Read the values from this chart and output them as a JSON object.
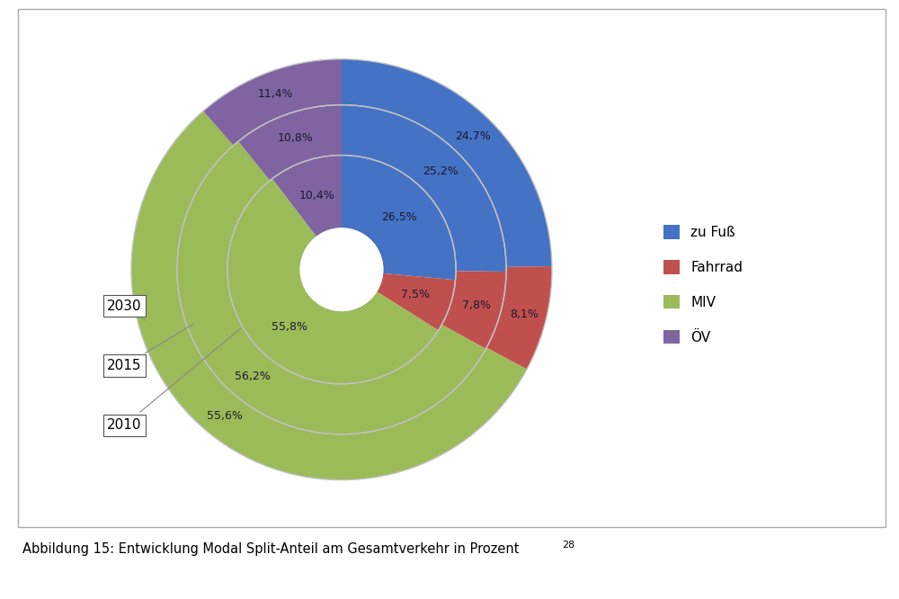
{
  "title": "Abbildung 15: Entwicklung Modal Split-Anteil am Gesamtverkehr in Prozent",
  "title_superscript": "28",
  "years": [
    "2010",
    "2015",
    "2030"
  ],
  "categories": [
    "zu Fuß",
    "Fahrrad",
    "MIV",
    "ÖV"
  ],
  "colors": {
    "zu Fuß": "#4472C4",
    "Fahrrad": "#C0504D",
    "MIV": "#9BBB59",
    "ÖV": "#8064A2"
  },
  "data": {
    "2010": {
      "zu Fuß": 26.5,
      "Fahrrad": 7.5,
      "MIV": 55.8,
      "ÖV": 10.4
    },
    "2015": {
      "zu Fuß": 25.2,
      "Fahrrad": 7.8,
      "MIV": 56.2,
      "ÖV": 10.8
    },
    "2030": {
      "zu Fuß": 24.7,
      "Fahrrad": 8.1,
      "MIV": 55.6,
      "ÖV": 11.4
    }
  },
  "ring_radii": {
    "2010": [
      0.18,
      0.5
    ],
    "2015": [
      0.5,
      0.72
    ],
    "2030": [
      0.72,
      0.92
    ]
  },
  "background_color": "#ffffff",
  "separator_color": "#c0c0c0",
  "border_color": "#aaaaaa"
}
